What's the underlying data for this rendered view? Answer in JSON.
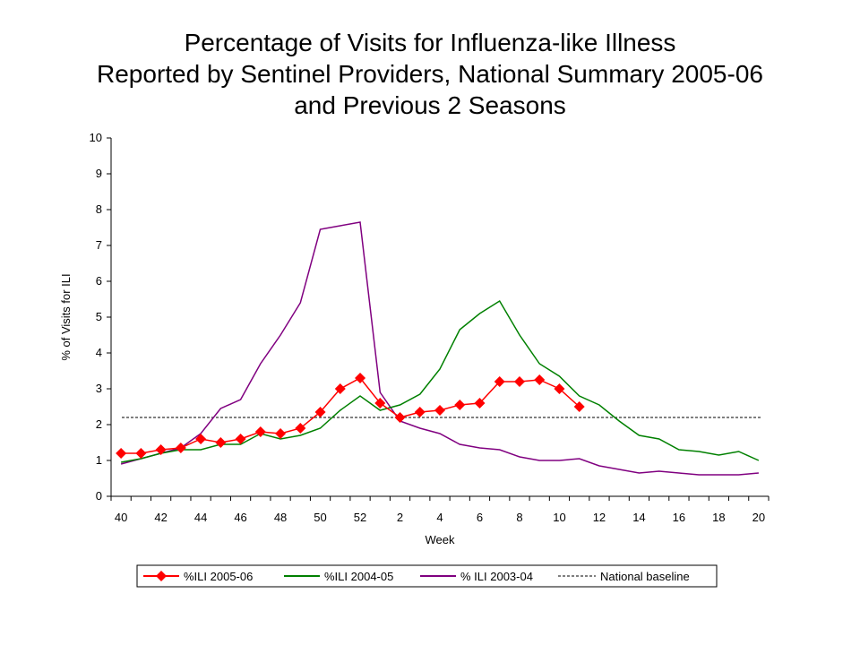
{
  "chart_data": {
    "type": "line",
    "title": [
      "Percentage of Visits for Influenza-like Illness",
      "Reported by Sentinel Providers, National Summary 2005-06",
      "and Previous 2 Seasons"
    ],
    "xlabel": "Week",
    "ylabel": "% of Visits for ILI",
    "ylim": [
      0,
      10
    ],
    "yticks": [
      0,
      1,
      2,
      3,
      4,
      5,
      6,
      7,
      8,
      9,
      10
    ],
    "x_tick_labels": [
      "40",
      "42",
      "44",
      "46",
      "48",
      "50",
      "52",
      "2",
      "4",
      "6",
      "8",
      "10",
      "12",
      "14",
      "16",
      "18",
      "20"
    ],
    "weeks": [
      40,
      41,
      42,
      43,
      44,
      45,
      46,
      47,
      48,
      49,
      50,
      51,
      52,
      1,
      2,
      3,
      4,
      5,
      6,
      7,
      8,
      9,
      10,
      11,
      12,
      13,
      14,
      15,
      16,
      17,
      18,
      19,
      20
    ],
    "series": [
      {
        "name": "%ILI 2005-06",
        "color": "#ff0000",
        "marker": "diamond",
        "values": [
          1.2,
          1.2,
          1.3,
          1.35,
          1.6,
          1.5,
          1.6,
          1.8,
          1.75,
          1.9,
          2.35,
          3.0,
          3.3,
          2.6,
          2.2,
          2.35,
          2.4,
          2.55,
          2.6,
          3.2,
          3.2,
          3.25,
          3.0,
          2.5
        ]
      },
      {
        "name": "%ILI 2004-05",
        "color": "#008000",
        "marker": "none",
        "values": [
          0.95,
          1.05,
          1.2,
          1.3,
          1.3,
          1.45,
          1.45,
          1.75,
          1.6,
          1.7,
          1.9,
          2.4,
          2.8,
          2.4,
          2.55,
          2.85,
          3.55,
          4.65,
          5.1,
          5.45,
          4.5,
          3.7,
          3.35,
          2.8,
          2.55,
          2.1,
          1.7,
          1.6,
          1.3,
          1.25,
          1.15,
          1.25,
          1.0
        ]
      },
      {
        "name": "% ILI 2003-04",
        "color": "#800080",
        "marker": "none",
        "values": [
          0.9,
          1.05,
          1.2,
          1.35,
          1.75,
          2.45,
          2.7,
          3.7,
          4.5,
          5.4,
          7.45,
          7.55,
          7.65,
          2.9,
          2.1,
          1.9,
          1.75,
          1.45,
          1.35,
          1.3,
          1.1,
          1.0,
          1.0,
          1.05,
          0.85,
          0.75,
          0.65,
          0.7,
          0.65,
          0.6,
          0.6,
          0.6,
          0.65
        ]
      },
      {
        "name": "National baseline",
        "color": "#000000",
        "marker": "none",
        "dashed": true,
        "values": [
          2.2,
          2.2,
          2.2,
          2.2,
          2.2,
          2.2,
          2.2,
          2.2,
          2.2,
          2.2,
          2.2,
          2.2,
          2.2,
          2.2,
          2.2,
          2.2,
          2.2,
          2.2,
          2.2,
          2.2,
          2.2,
          2.2,
          2.2,
          2.2,
          2.2,
          2.2,
          2.2,
          2.2,
          2.2,
          2.2,
          2.2,
          2.2,
          2.2
        ]
      }
    ],
    "legend": {
      "position": "bottom",
      "entries": [
        "%ILI 2005-06",
        "%ILI 2004-05",
        "% ILI 2003-04",
        "National baseline"
      ]
    },
    "grid": false
  }
}
